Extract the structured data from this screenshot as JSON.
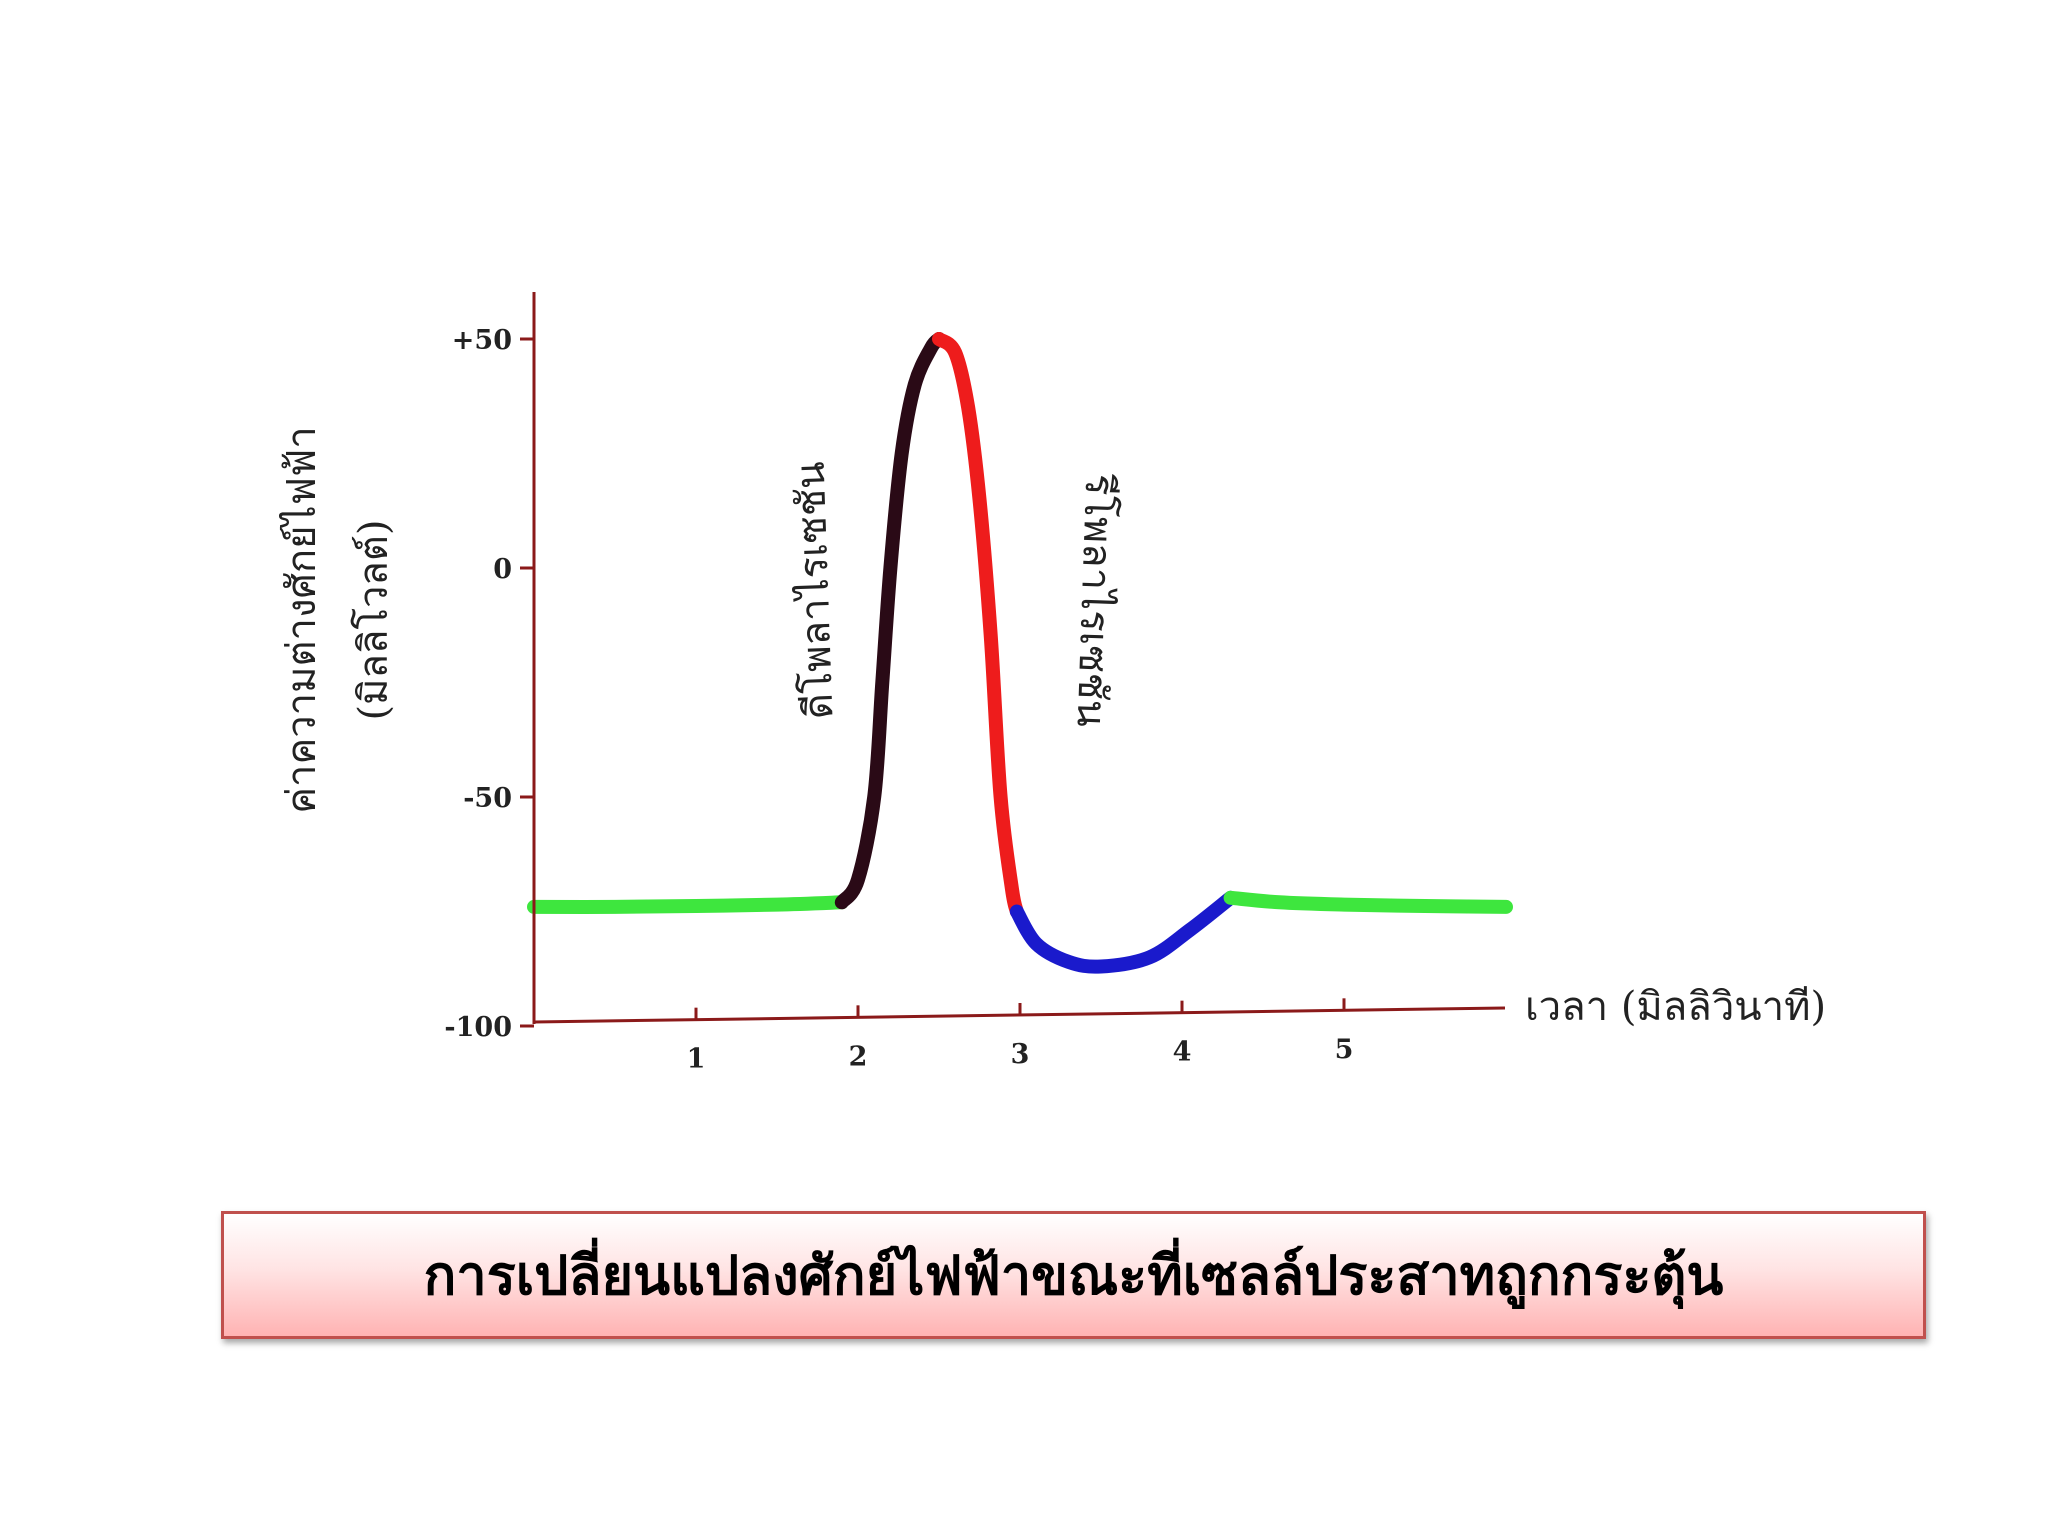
{
  "chart_data": {
    "type": "line",
    "xlabel": "เวลา (มิลลิวินาที)",
    "ylabel_line1": "ค่าความต่างศักย์ไฟฟ้า",
    "ylabel_line2": "(มิลลิโวลต์)",
    "xlim": [
      0,
      6
    ],
    "ylim": [
      -100,
      60
    ],
    "x_ticks": [
      {
        "value": 1,
        "label": "1"
      },
      {
        "value": 2,
        "label": "2"
      },
      {
        "value": 3,
        "label": "3"
      },
      {
        "value": 4,
        "label": "4"
      },
      {
        "value": 5,
        "label": "5"
      }
    ],
    "y_ticks": [
      {
        "value": 50,
        "label": "+50"
      },
      {
        "value": 0,
        "label": "0"
      },
      {
        "value": -50,
        "label": "-50"
      },
      {
        "value": -100,
        "label": "-100"
      }
    ],
    "annotations": [
      {
        "text": "ดีโพลาไรเซชัน",
        "x": 2.05,
        "y": -10
      },
      {
        "text": "รีโพลาไรเซชัน",
        "x": 3.3,
        "y": -10
      }
    ],
    "segments": [
      {
        "phase": "resting",
        "color": "#3ee63e",
        "points": [
          [
            0,
            -74
          ],
          [
            0.5,
            -74
          ],
          [
            1.0,
            -73.8
          ],
          [
            1.5,
            -73.5
          ],
          [
            1.9,
            -73
          ]
        ]
      },
      {
        "phase": "depolarization",
        "color": "#2a0a16",
        "points": [
          [
            1.9,
            -73
          ],
          [
            2.0,
            -68
          ],
          [
            2.1,
            -50
          ],
          [
            2.15,
            -25
          ],
          [
            2.2,
            0
          ],
          [
            2.27,
            25
          ],
          [
            2.35,
            40
          ],
          [
            2.45,
            48
          ],
          [
            2.5,
            50
          ]
        ]
      },
      {
        "phase": "repolarization",
        "color": "#ee1c1c",
        "points": [
          [
            2.5,
            50
          ],
          [
            2.6,
            47
          ],
          [
            2.68,
            35
          ],
          [
            2.75,
            15
          ],
          [
            2.82,
            -15
          ],
          [
            2.88,
            -50
          ],
          [
            2.95,
            -70
          ],
          [
            2.98,
            -75
          ]
        ]
      },
      {
        "phase": "hyperpolarization",
        "color": "#1a1acc",
        "points": [
          [
            2.98,
            -75
          ],
          [
            3.1,
            -82
          ],
          [
            3.3,
            -86
          ],
          [
            3.5,
            -87
          ],
          [
            3.8,
            -85
          ],
          [
            4.05,
            -79
          ],
          [
            4.3,
            -72
          ]
        ]
      },
      {
        "phase": "resting",
        "color": "#3ee63e",
        "points": [
          [
            4.3,
            -72
          ],
          [
            4.6,
            -73
          ],
          [
            5.0,
            -73.5
          ],
          [
            5.5,
            -73.8
          ],
          [
            6.0,
            -74
          ]
        ]
      }
    ]
  },
  "caption": "การเปลี่ยนแปลงศักย์ไฟฟ้าขณะที่เซลล์ประสาทถูกกระตุ้น"
}
